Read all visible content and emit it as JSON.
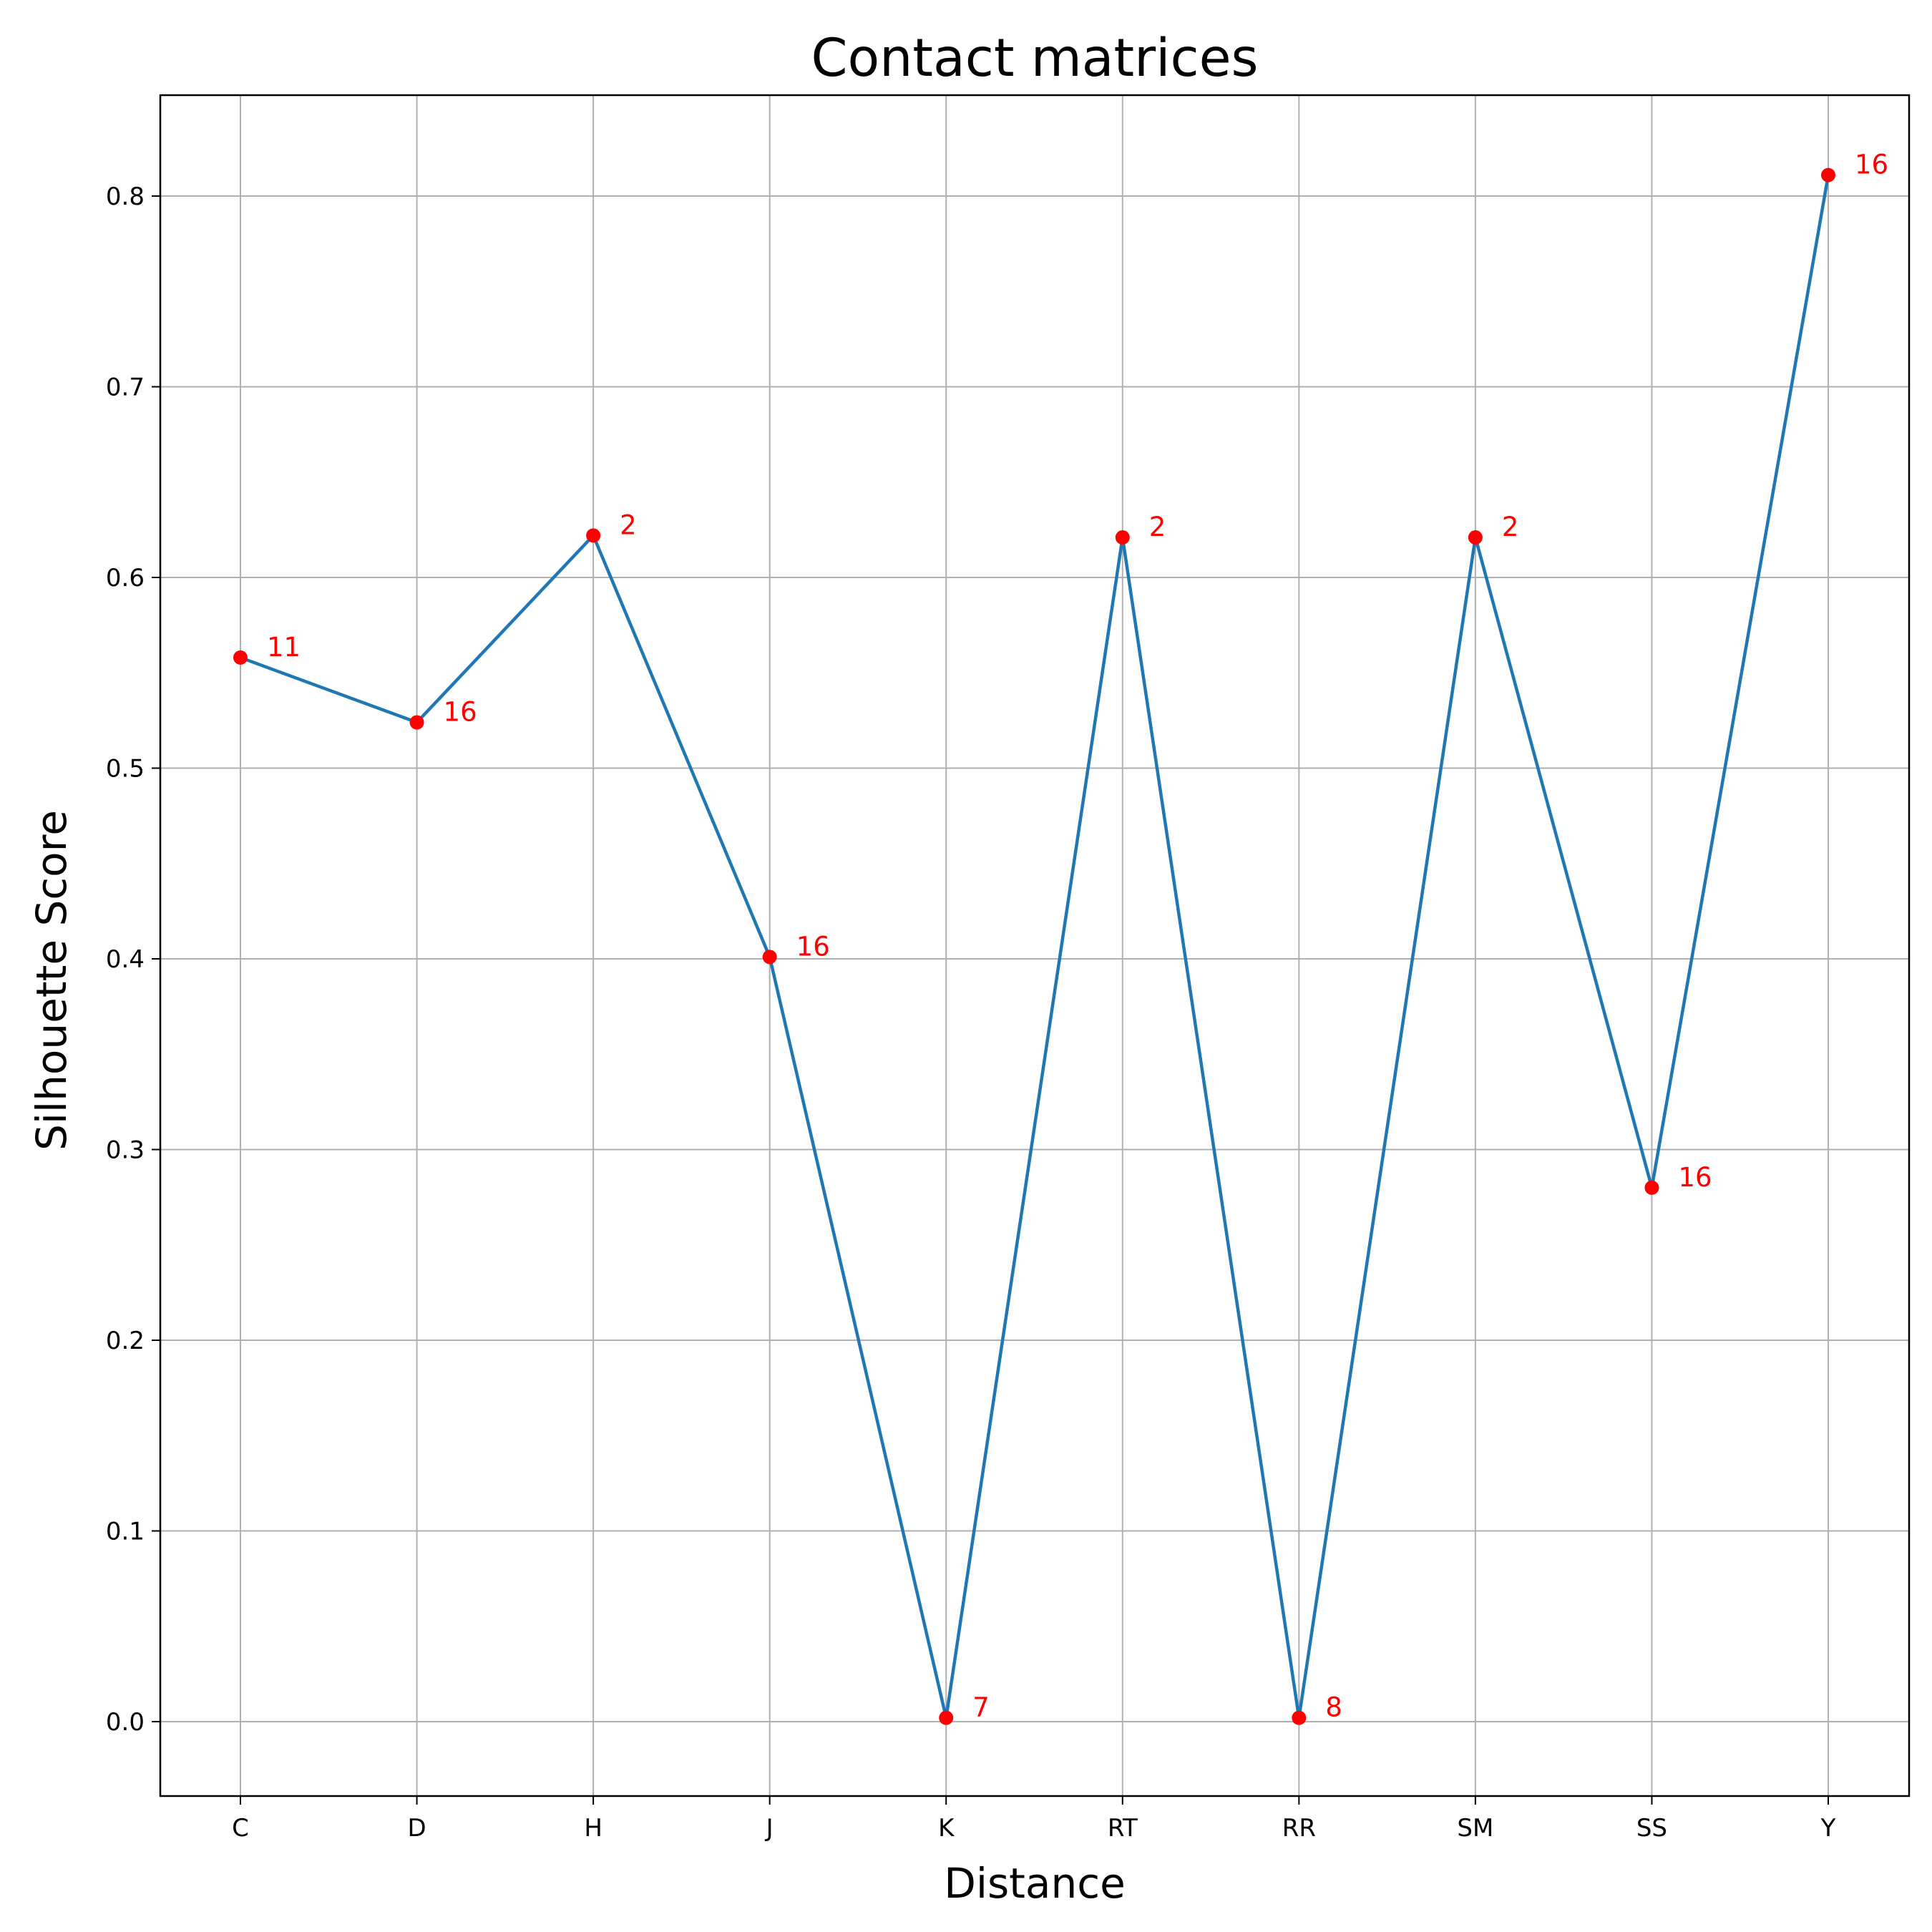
{
  "chart_data": {
    "type": "line",
    "title": "Contact matrices",
    "xlabel": "Distance",
    "ylabel": "Silhouette Score",
    "categories": [
      "C",
      "D",
      "H",
      "J",
      "K",
      "RT",
      "RR",
      "SM",
      "SS",
      "Y"
    ],
    "values": [
      0.558,
      0.524,
      0.622,
      0.401,
      0.002,
      0.621,
      0.002,
      0.621,
      0.28,
      0.811
    ],
    "point_labels": [
      "11",
      "16",
      "2",
      "16",
      "7",
      "2",
      "8",
      "2",
      "16",
      "16"
    ],
    "ylim": [
      -0.038,
      0.853
    ],
    "yticks": [
      0.0,
      0.1,
      0.2,
      0.3,
      0.4,
      0.5,
      0.6,
      0.7,
      0.8
    ],
    "ytick_labels": [
      "0.0",
      "0.1",
      "0.2",
      "0.3",
      "0.4",
      "0.5",
      "0.6",
      "0.7",
      "0.8"
    ],
    "grid": true,
    "line_color": "#1f77b4",
    "marker_color": "#ff0000",
    "label_color": "#ff0000"
  }
}
